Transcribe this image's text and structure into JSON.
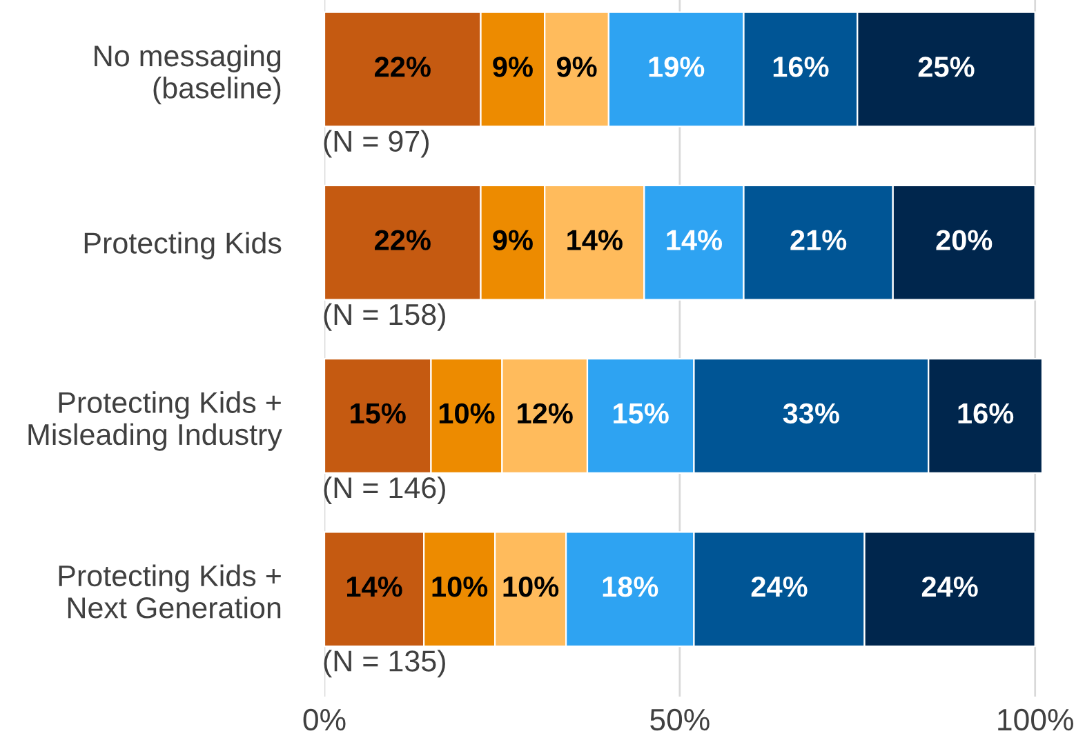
{
  "chart_data": {
    "type": "bar",
    "orientation": "horizontal",
    "stacked": true,
    "grid": "x",
    "legend": false,
    "categories": [
      "No messaging\n(baseline)",
      "Protecting Kids",
      "Protecting Kids +\nMisleading Industry",
      "Protecting Kids +\nNext Generation"
    ],
    "series": [
      {
        "color": "#c55a11",
        "values": [
          22,
          22,
          15,
          14
        ],
        "value_labels": [
          "22%",
          "22%",
          "15%",
          "14%"
        ]
      },
      {
        "color": "#ed8b00",
        "values": [
          9,
          9,
          10,
          10
        ],
        "value_labels": [
          "9%",
          "9%",
          "10%",
          "10%"
        ]
      },
      {
        "color": "#ffbb5c",
        "values": [
          9,
          14,
          12,
          10
        ],
        "value_labels": [
          "9%",
          "14%",
          "12%",
          "10%"
        ]
      },
      {
        "color": "#2ea3f2",
        "values": [
          19,
          14,
          15,
          18
        ],
        "value_labels": [
          "19%",
          "14%",
          "15%",
          "18%"
        ]
      },
      {
        "color": "#005595",
        "values": [
          16,
          21,
          33,
          24
        ],
        "value_labels": [
          "16%",
          "21%",
          "33%",
          "24%"
        ]
      },
      {
        "color": "#00264d",
        "values": [
          25,
          20,
          16,
          24
        ],
        "value_labels": [
          "25%",
          "20%",
          "16%",
          "24%"
        ]
      }
    ],
    "xlim": [
      0,
      101
    ],
    "xticks": [
      {
        "value": 0,
        "label": "0%"
      },
      {
        "value": 50,
        "label": "50%"
      },
      {
        "value": 100,
        "label": "100%"
      }
    ],
    "annotations": [
      "(N = 97)",
      "(N = 158)",
      "(N = 146)",
      "(N = 135)"
    ]
  }
}
